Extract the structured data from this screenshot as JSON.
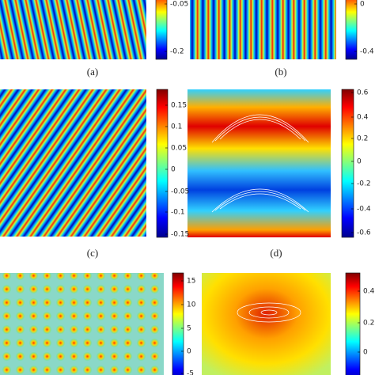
{
  "panels": [
    {
      "label": "(a)",
      "colorbar": [
        "-0.05",
        "-0.2"
      ]
    },
    {
      "label": "(b)",
      "colorbar": [
        "0",
        "-0.4"
      ]
    },
    {
      "label": "(c)",
      "colorbar": [
        "0.15",
        "0.1",
        "0.05",
        "0",
        "-0.05",
        "-0.1",
        "-0.15"
      ]
    },
    {
      "label": "(d)",
      "colorbar": [
        "0.6",
        "0.4",
        "0.2",
        "0",
        "-0.2",
        "-0.4",
        "-0.6"
      ]
    },
    {
      "colorbar": [
        "15",
        "10",
        "5",
        "0",
        "-5"
      ]
    },
    {
      "colorbar": [
        "0.4",
        "0.2",
        "0"
      ]
    }
  ]
}
